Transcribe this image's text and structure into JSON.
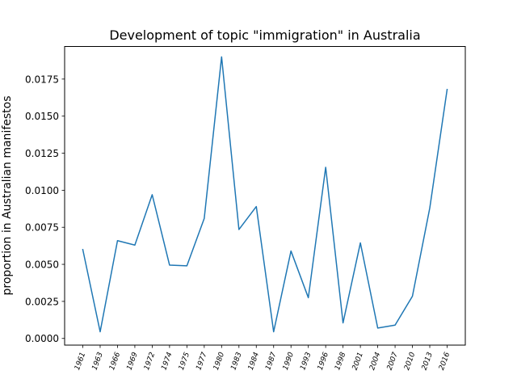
{
  "chart_data": {
    "type": "line",
    "title": "Development of topic \"immigration\" in Australia",
    "xlabel": "",
    "ylabel": "proportion in Australian manifestos",
    "categories": [
      "1961",
      "1963",
      "1966",
      "1969",
      "1972",
      "1974",
      "1975",
      "1977",
      "1980",
      "1983",
      "1984",
      "1987",
      "1990",
      "1993",
      "1996",
      "1998",
      "2001",
      "2004",
      "2007",
      "2010",
      "2013",
      "2016"
    ],
    "series": [
      {
        "values": [
          0.006,
          0.00045,
          0.0066,
          0.0063,
          0.0097,
          0.00495,
          0.0049,
          0.0081,
          0.019,
          0.00735,
          0.0089,
          0.00045,
          0.0059,
          0.00275,
          0.01155,
          0.00105,
          0.00645,
          0.0007,
          0.0009,
          0.00285,
          0.0088,
          0.0168
        ],
        "color": "#1f77b4"
      }
    ],
    "ylim": [
      -0.00045,
      0.0197
    ],
    "yticks": [
      0.0,
      0.0025,
      0.005,
      0.0075,
      0.01,
      0.0125,
      0.015,
      0.0175
    ],
    "ytick_labels": [
      "0.0000",
      "0.0025",
      "0.0050",
      "0.0075",
      "0.0100",
      "0.0125",
      "0.0150",
      "0.0175"
    ],
    "grid": false,
    "legend": false
  }
}
